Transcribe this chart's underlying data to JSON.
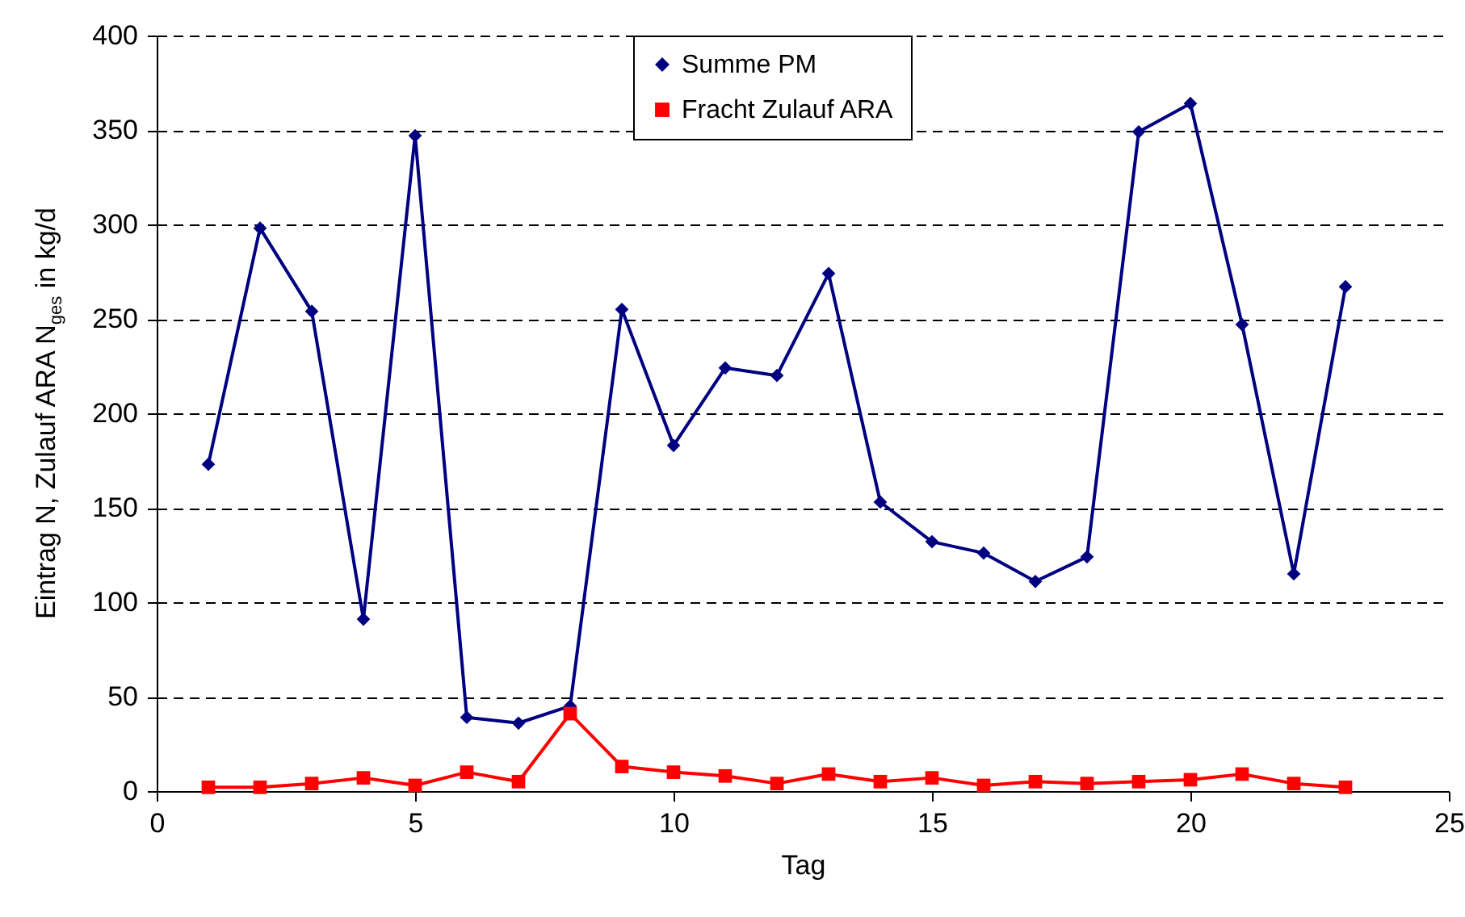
{
  "chart_data": {
    "type": "line",
    "xlabel": "Tag",
    "ylabel": "Eintrag N, Zulauf ARA N$_{ges}$ in kg/d",
    "x": [
      1,
      2,
      3,
      4,
      5,
      6,
      7,
      8,
      9,
      10,
      11,
      12,
      13,
      14,
      15,
      16,
      17,
      18,
      19,
      20,
      21,
      22,
      23
    ],
    "series": [
      {
        "name": "Summe PM",
        "color": "#000080",
        "marker": "diamond",
        "values": [
          173,
          298,
          254,
          91,
          347,
          39,
          36,
          45,
          255,
          183,
          224,
          220,
          274,
          153,
          132,
          126,
          111,
          124,
          349,
          364,
          247,
          115,
          267
        ]
      },
      {
        "name": "Fracht Zulauf ARA",
        "color": "#ff0000",
        "marker": "square",
        "values": [
          2,
          2,
          4,
          7,
          3,
          10,
          5,
          41,
          13,
          10,
          8,
          4,
          9,
          5,
          7,
          3,
          5,
          4,
          5,
          6,
          9,
          4,
          2
        ]
      }
    ],
    "xlim": [
      0,
      25
    ],
    "xticks": [
      0,
      5,
      10,
      15,
      20,
      25
    ],
    "ylim": [
      0,
      400
    ],
    "yticks": [
      0,
      50,
      100,
      150,
      200,
      250,
      300,
      350,
      400
    ],
    "grid": "y",
    "legend": "top",
    "line_style": "solid"
  }
}
